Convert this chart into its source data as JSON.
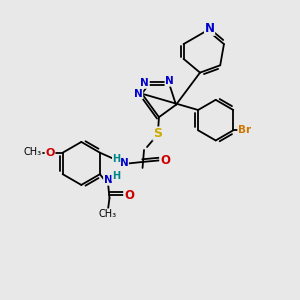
{
  "bg_color": "#e8e8e8",
  "bond_color": "#000000",
  "atom_colors": {
    "N": "#0000cc",
    "O": "#cc0000",
    "S": "#ccaa00",
    "Br": "#cc7700",
    "H": "#008888",
    "C": "#000000"
  },
  "lw": 1.3,
  "fs": 7.5,
  "xlim": [
    0,
    10
  ],
  "ylim": [
    0,
    10
  ]
}
